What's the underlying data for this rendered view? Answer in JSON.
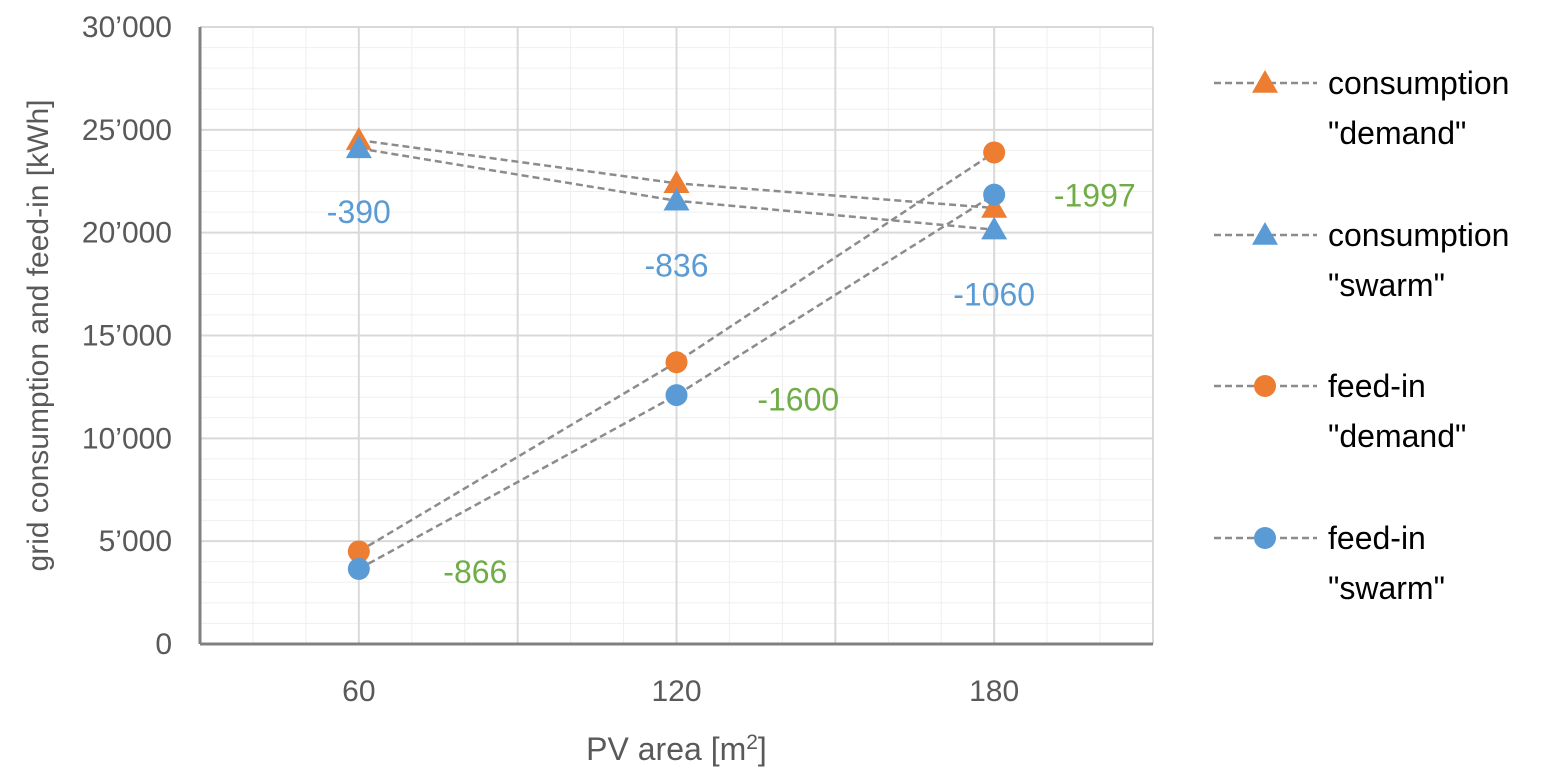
{
  "chart_data": {
    "type": "line",
    "xlabel_base": "PV area  [m",
    "xlabel_sup": "2",
    "xlabel_end": "]",
    "ylabel": "grid consumption and feed-in  [kWh]",
    "x": [
      60,
      120,
      180
    ],
    "xlim": [
      30,
      210
    ],
    "ylim": [
      0,
      30000
    ],
    "x_ticks": [
      "60",
      "120",
      "180"
    ],
    "y_ticks": [
      "0",
      "5’000",
      "10’000",
      "15’000",
      "20’000",
      "25’000",
      "30’000"
    ],
    "grid": true,
    "legend_position": "right",
    "colors": {
      "orange": "#ED7D31",
      "blue": "#5B9BD5",
      "green": "#70AD47",
      "line": "#8C8C8C"
    },
    "series": [
      {
        "name_line1": "consumption",
        "name_line2": "\"demand\"",
        "marker": "triangle",
        "color": "#ED7D31",
        "values": [
          24500,
          22400,
          21200
        ]
      },
      {
        "name_line1": "consumption",
        "name_line2": "\"swarm\"",
        "marker": "triangle",
        "color": "#5B9BD5",
        "values": [
          24100,
          21550,
          20150
        ]
      },
      {
        "name_line1": "feed-in",
        "name_line2": "\"demand\"",
        "marker": "circle",
        "color": "#ED7D31",
        "values": [
          4500,
          13700,
          23900
        ]
      },
      {
        "name_line1": "feed-in",
        "name_line2": "\"swarm\"",
        "marker": "circle",
        "color": "#5B9BD5",
        "values": [
          3650,
          12100,
          21850
        ]
      }
    ],
    "annotations": [
      {
        "text": "-390",
        "x": 60,
        "y": 21000,
        "color": "blue"
      },
      {
        "text": "-836",
        "x": 120,
        "y": 18400,
        "color": "blue"
      },
      {
        "text": "-1060",
        "x": 180,
        "y": 17000,
        "color": "blue"
      },
      {
        "text": "-1997",
        "x": 199,
        "y": 21800,
        "color": "green"
      },
      {
        "text": "-1600",
        "x": 143,
        "y": 11900,
        "color": "green"
      },
      {
        "text": "-866",
        "x": 82,
        "y": 3500,
        "color": "green"
      }
    ]
  }
}
